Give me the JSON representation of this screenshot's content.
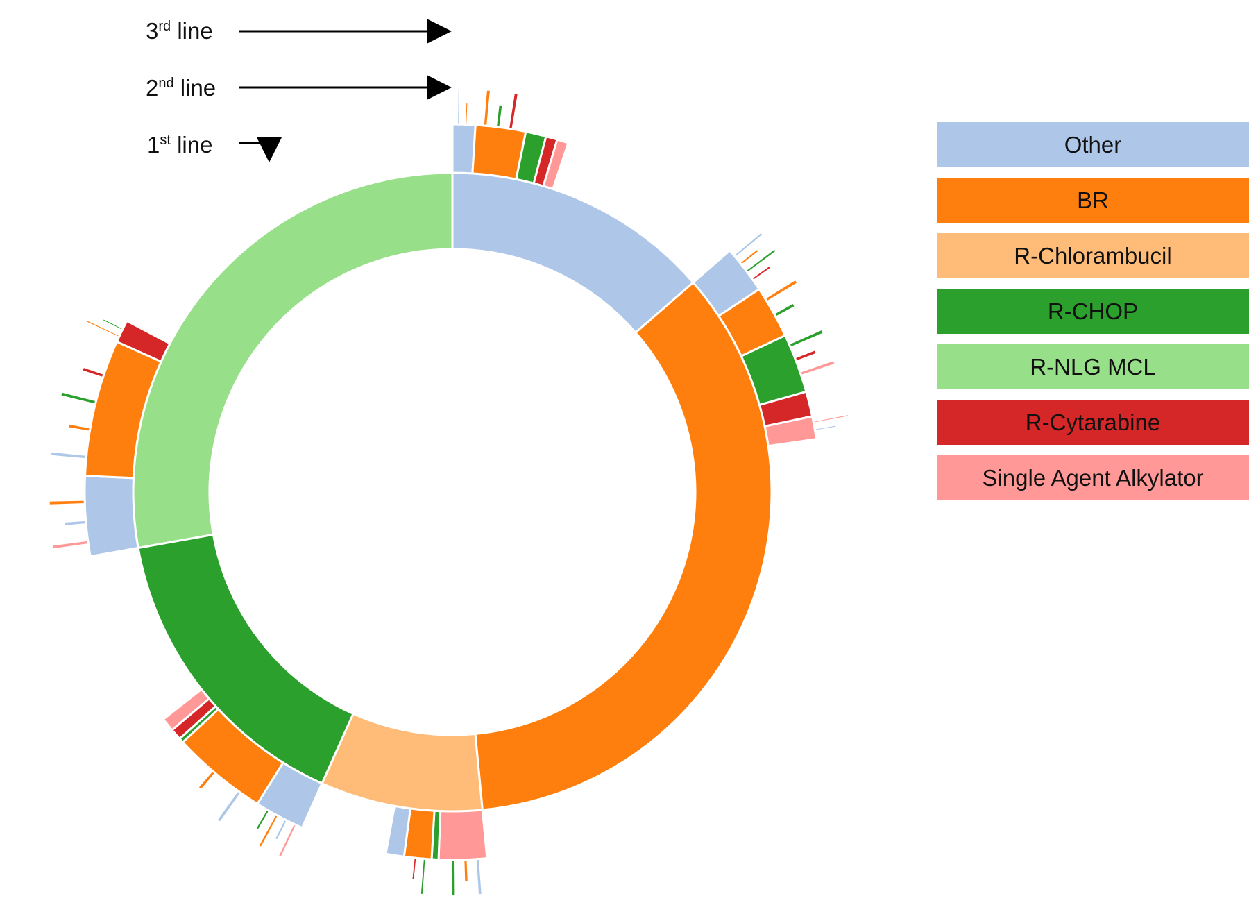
{
  "chart_data": {
    "type": "sunburst",
    "levels": [
      {
        "sup": "st",
        "prefix": "1",
        "suffix": " line"
      },
      {
        "sup": "nd",
        "prefix": "2",
        "suffix": " line"
      },
      {
        "sup": "rd",
        "prefix": "3",
        "suffix": " line"
      }
    ],
    "legend": [
      {
        "label": "Other",
        "color": "#aec7e8"
      },
      {
        "label": "BR",
        "color": "#ff7f0e"
      },
      {
        "label": "R-Chlorambucil",
        "color": "#ffbb78"
      },
      {
        "label": "R-CHOP",
        "color": "#2ca02c"
      },
      {
        "label": "R-NLG MCL",
        "color": "#98df8a"
      },
      {
        "label": "R-Cytarabine",
        "color": "#d62728"
      },
      {
        "label": "Single Agent Alkylator",
        "color": "#ff9896"
      }
    ],
    "first_line": [
      {
        "regimen": "Other",
        "percent": 13.6
      },
      {
        "regimen": "BR",
        "percent": 34.9
      },
      {
        "regimen": "R-Chlorambucil",
        "percent": 8.2
      },
      {
        "regimen": "R-CHOP",
        "percent": 15.5
      },
      {
        "regimen": "R-NLG MCL",
        "percent": 27.8
      }
    ],
    "second_line": [
      {
        "parent": "Other",
        "regimen": "Other",
        "percent": 1.0
      },
      {
        "parent": "Other",
        "regimen": "BR",
        "percent": 2.2
      },
      {
        "parent": "Other",
        "regimen": "R-CHOP",
        "percent": 0.9
      },
      {
        "parent": "Other",
        "regimen": "R-Cytarabine",
        "percent": 0.5
      },
      {
        "parent": "Other",
        "regimen": "Single Agent Alkylator",
        "percent": 0.5
      },
      {
        "parent": "BR",
        "regimen": "Other",
        "percent": 2.1
      },
      {
        "parent": "BR",
        "regimen": "BR",
        "percent": 2.3
      },
      {
        "parent": "BR",
        "regimen": "R-CHOP",
        "percent": 2.6
      },
      {
        "parent": "BR",
        "regimen": "R-Cytarabine",
        "percent": 1.1
      },
      {
        "parent": "BR",
        "regimen": "Single Agent Alkylator",
        "percent": 1.0
      },
      {
        "parent": "R-Chlorambucil",
        "regimen": "Single Agent Alkylator",
        "percent": 2.1
      },
      {
        "parent": "R-Chlorambucil",
        "regimen": "R-CHOP",
        "percent": 0.3
      },
      {
        "parent": "R-Chlorambucil",
        "regimen": "BR",
        "percent": 1.2
      },
      {
        "parent": "R-Chlorambucil",
        "regimen": "Other",
        "percent": 0.8
      },
      {
        "parent": "R-CHOP",
        "regimen": "Other",
        "percent": 2.2
      },
      {
        "parent": "R-CHOP",
        "regimen": "BR",
        "percent": 4.2
      },
      {
        "parent": "R-CHOP",
        "regimen": "R-CHOP",
        "percent": 0.2
      },
      {
        "parent": "R-CHOP",
        "regimen": "R-Cytarabine",
        "percent": 0.5
      },
      {
        "parent": "R-CHOP",
        "regimen": "Single Agent Alkylator",
        "percent": 0.6
      },
      {
        "parent": "R-NLG MCL",
        "regimen": "Other",
        "percent": 3.5
      },
      {
        "parent": "R-NLG MCL",
        "regimen": "BR",
        "percent": 6.0
      },
      {
        "parent": "R-NLG MCL",
        "regimen": "R-Cytarabine",
        "percent": 1.0
      }
    ]
  }
}
